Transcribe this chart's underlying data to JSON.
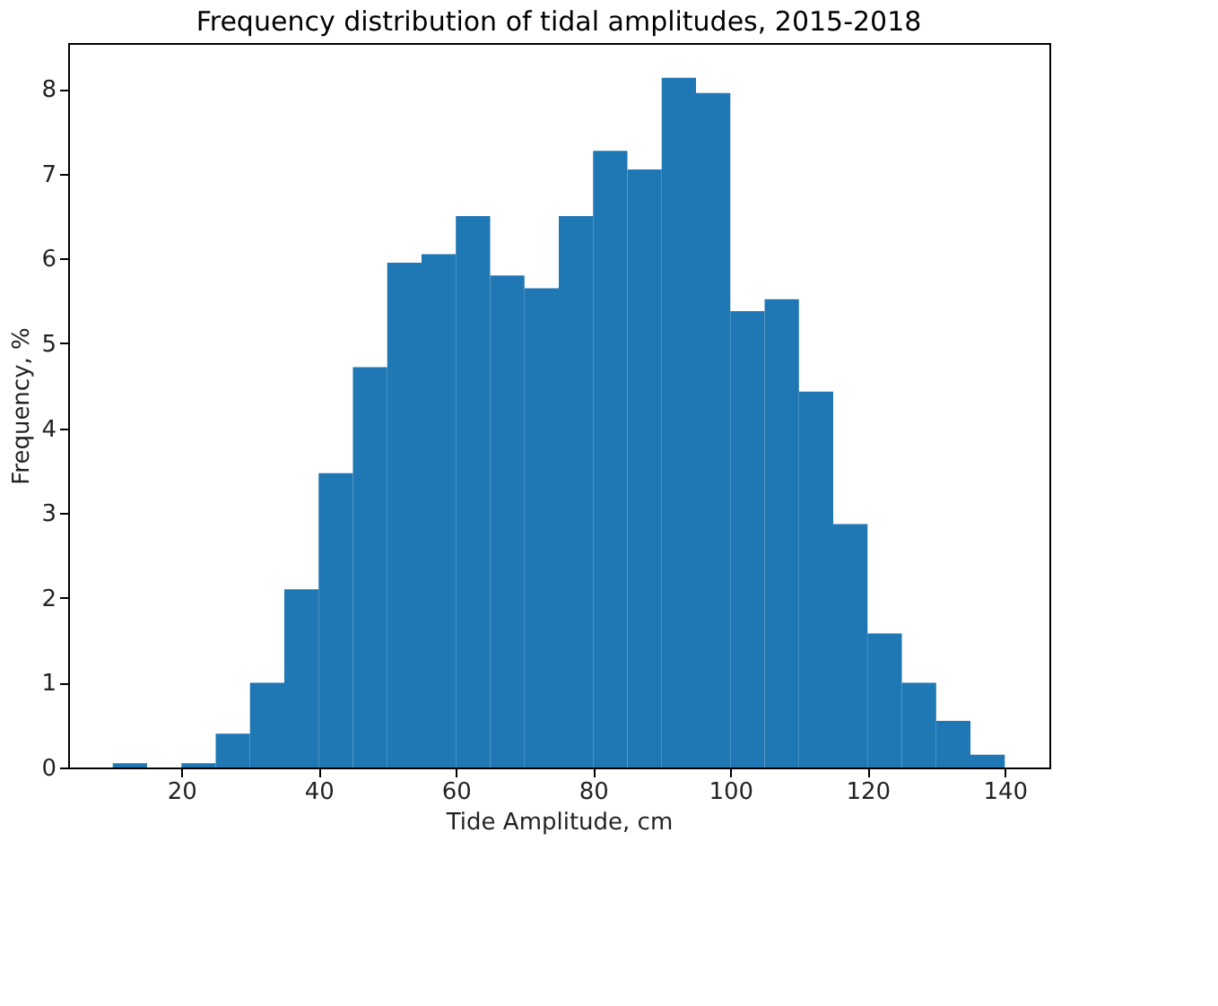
{
  "chart_data": {
    "type": "histogram",
    "title": "Frequency distribution of tidal amplitudes, 2015-2018",
    "xlabel": "Tide Amplitude, cm",
    "ylabel": "Frequency, %",
    "bins": [
      10,
      15,
      20,
      25,
      30,
      35,
      40,
      45,
      50,
      55,
      60,
      65,
      70,
      75,
      80,
      85,
      90,
      95,
      100,
      105,
      110,
      115,
      120,
      125,
      130,
      135,
      140
    ],
    "values": [
      0.05,
      0,
      0.05,
      0.4,
      1.0,
      2.1,
      3.47,
      4.72,
      5.95,
      6.05,
      6.5,
      5.8,
      5.65,
      6.5,
      7.27,
      7.05,
      8.13,
      7.95,
      5.38,
      5.52,
      4.43,
      2.87,
      1.58,
      1.0,
      0.55,
      0.15
    ],
    "color": "#1f77b4",
    "xlim": [
      3.5,
      146.5
    ],
    "ylim": [
      0,
      8.54
    ],
    "xticks": [
      20,
      40,
      60,
      80,
      100,
      120,
      140
    ],
    "yticks": [
      0,
      1,
      2,
      3,
      4,
      5,
      6,
      7,
      8
    ],
    "grid": false
  }
}
